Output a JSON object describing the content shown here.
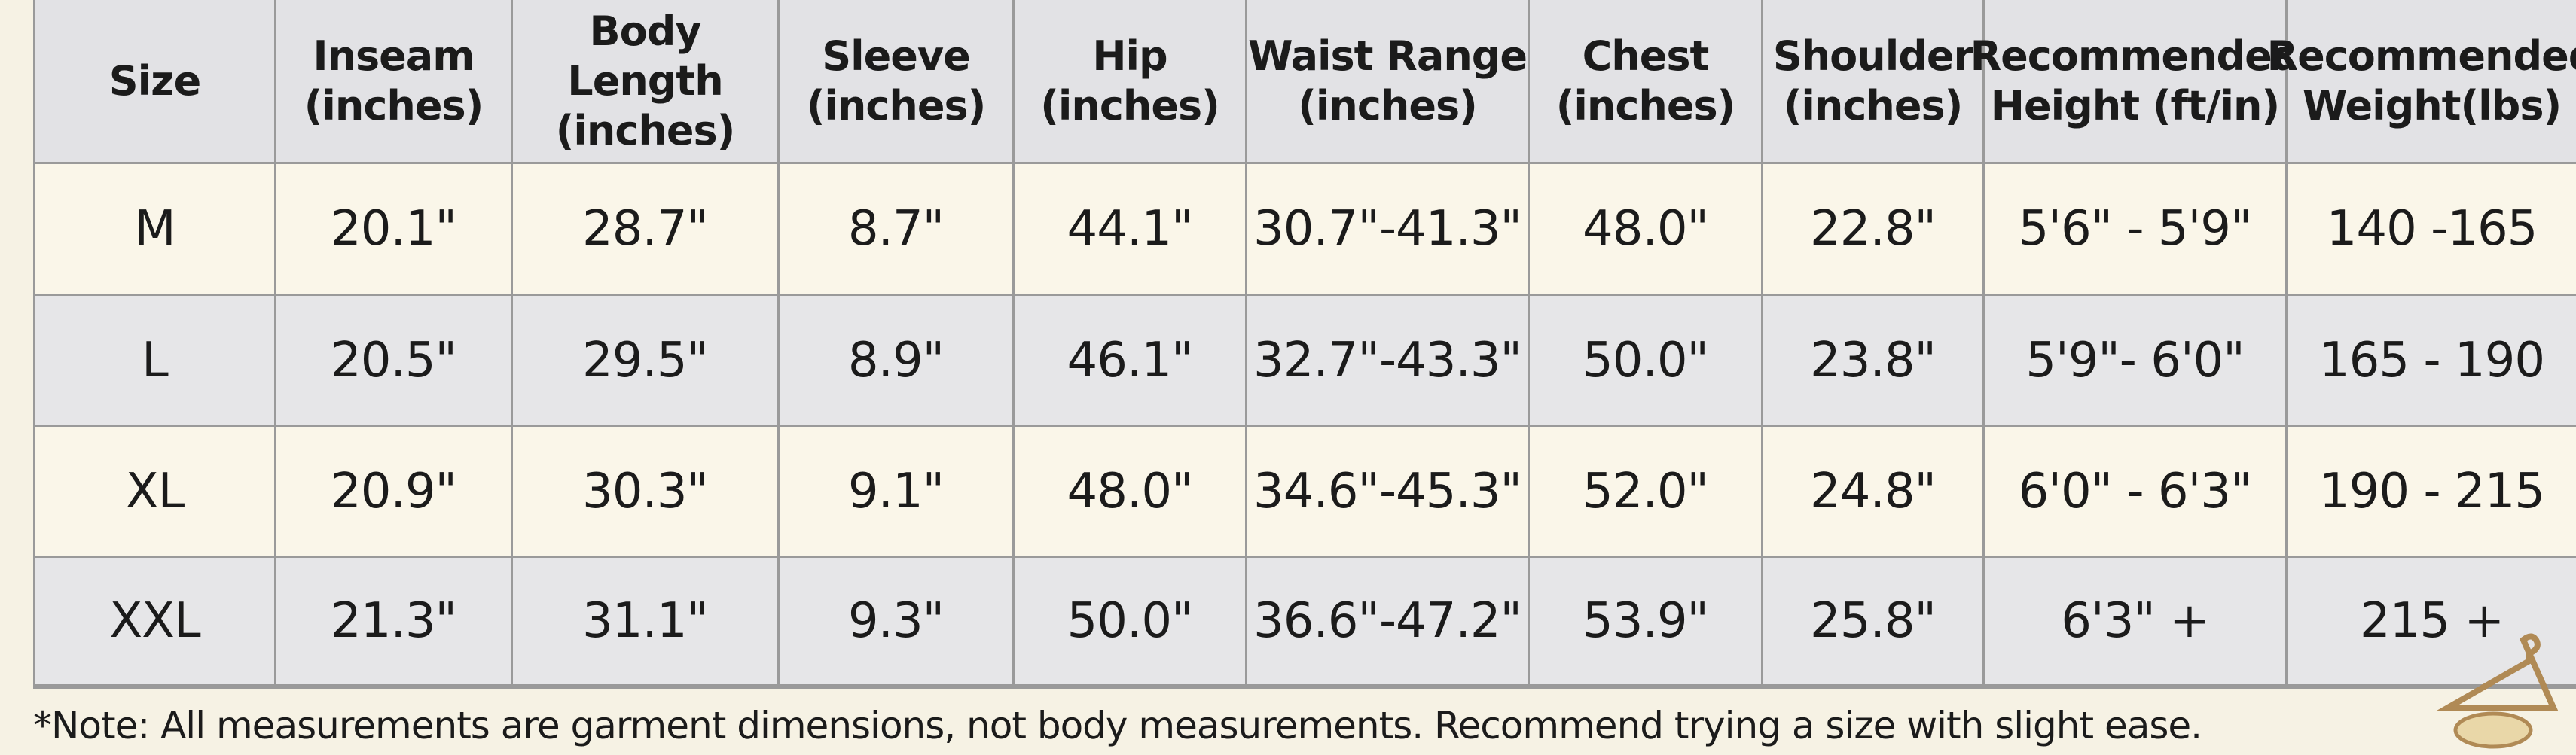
{
  "table": {
    "header": [
      [
        "Size"
      ],
      [
        "Inseam",
        "(inches)"
      ],
      [
        "Body Length",
        "(inches)"
      ],
      [
        "Sleeve",
        "(inches)"
      ],
      [
        "Hip",
        "(inches)"
      ],
      [
        "Waist Range",
        "(inches)"
      ],
      [
        "Chest",
        "(inches)"
      ],
      [
        "Shoulder",
        "(inches)"
      ],
      [
        "Recommended",
        "Height (ft/in)"
      ],
      [
        "Recommended",
        "Weight(lbs)"
      ]
    ],
    "rows": [
      [
        "M",
        "20.1\"",
        "28.7\"",
        "8.7\"",
        "44.1\"",
        "30.7\"-41.3\"",
        "48.0\"",
        "22.8\"",
        "5'6\" - 5'9\"",
        "140 -165"
      ],
      [
        "L",
        "20.5\"",
        "29.5\"",
        "8.9\"",
        "46.1\"",
        "32.7\"-43.3\"",
        "50.0\"",
        "23.8\"",
        "5'9\"- 6'0\"",
        "165 - 190"
      ],
      [
        "XL",
        "20.9\"",
        "30.3\"",
        "9.1\"",
        "48.0\"",
        "34.6\"-45.3\"",
        "52.0\"",
        "24.8\"",
        "6'0\" - 6'3\"",
        "190 - 215"
      ],
      [
        "XXL",
        "21.3\"",
        "31.1\"",
        "9.3\"",
        "50.0\"",
        "36.6\"-47.2\"",
        "53.9\"",
        "25.8\"",
        "6'3\" +",
        "215 +"
      ]
    ]
  },
  "note": "*Note: All measurements are garment dimensions, not body measurements. Recommend trying a size with slight ease."
}
